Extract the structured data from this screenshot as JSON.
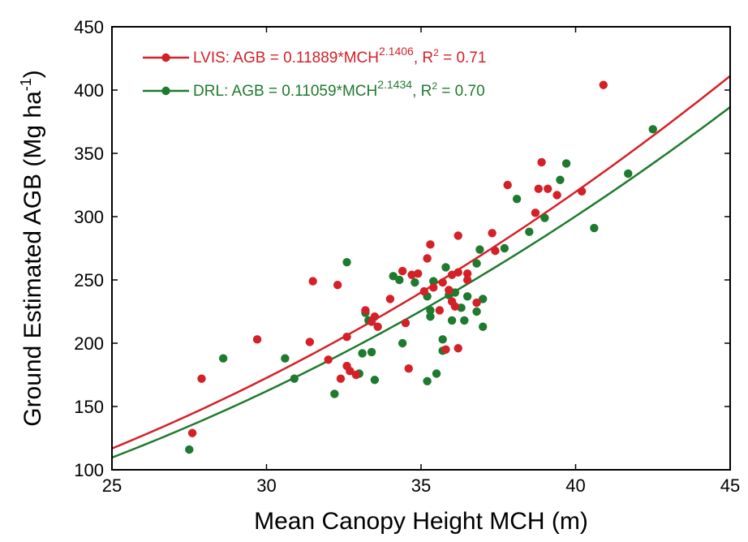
{
  "chart_data": {
    "type": "scatter",
    "title": "",
    "xlabel": "Mean Canopy Height MCH (m)",
    "ylabel_main": "Ground Estimated AGB (Mg ha",
    "ylabel_sup": "-1",
    "ylabel_close": ")",
    "xlim": [
      25,
      45
    ],
    "ylim": [
      100,
      450
    ],
    "xticks": [
      25,
      30,
      35,
      40,
      45
    ],
    "yticks": [
      100,
      150,
      200,
      250,
      300,
      350,
      400,
      450
    ],
    "grid": false,
    "legend_position": "top-left",
    "series": [
      {
        "name": "LVIS",
        "color": "#d42027",
        "legend": {
          "prefix": "LVIS: AGB = 0.11889*MCH",
          "exponent": "2.1406",
          "r2_prefix": ",  R",
          "r2_sup": "2",
          "r2_suffix": " = 0.71"
        },
        "fit": {
          "a": 0.11889,
          "b": 2.1406
        },
        "points": [
          [
            27.6,
            129
          ],
          [
            27.9,
            172
          ],
          [
            29.7,
            203
          ],
          [
            31.4,
            201
          ],
          [
            31.5,
            249
          ],
          [
            32.0,
            187
          ],
          [
            32.3,
            246
          ],
          [
            32.4,
            172
          ],
          [
            32.6,
            205
          ],
          [
            32.6,
            182
          ],
          [
            32.7,
            178
          ],
          [
            32.9,
            175
          ],
          [
            33.2,
            226
          ],
          [
            33.4,
            217
          ],
          [
            33.5,
            221
          ],
          [
            33.6,
            213
          ],
          [
            34.0,
            235
          ],
          [
            34.4,
            257
          ],
          [
            34.5,
            216
          ],
          [
            34.6,
            180
          ],
          [
            34.7,
            254
          ],
          [
            34.9,
            255
          ],
          [
            35.1,
            241
          ],
          [
            35.2,
            267
          ],
          [
            35.3,
            278
          ],
          [
            35.4,
            244
          ],
          [
            35.6,
            226
          ],
          [
            35.7,
            248
          ],
          [
            35.8,
            195
          ],
          [
            35.9,
            242
          ],
          [
            36.0,
            254
          ],
          [
            36.0,
            233
          ],
          [
            36.1,
            229
          ],
          [
            36.2,
            256
          ],
          [
            36.2,
            285
          ],
          [
            36.2,
            196
          ],
          [
            36.5,
            250
          ],
          [
            36.5,
            255
          ],
          [
            36.8,
            232
          ],
          [
            37.3,
            287
          ],
          [
            37.4,
            273
          ],
          [
            37.8,
            325
          ],
          [
            38.7,
            303
          ],
          [
            38.8,
            322
          ],
          [
            38.9,
            343
          ],
          [
            39.1,
            322
          ],
          [
            39.4,
            317
          ],
          [
            40.2,
            320
          ],
          [
            40.9,
            404
          ]
        ]
      },
      {
        "name": "DRL",
        "color": "#1e7a2e",
        "legend": {
          "prefix": "DRL: AGB = 0.11059*MCH",
          "exponent": "2.1434",
          "r2_prefix": ",  R",
          "r2_sup": "2",
          "r2_suffix": " = 0.70"
        },
        "fit": {
          "a": 0.11059,
          "b": 2.1434
        },
        "points": [
          [
            27.5,
            116
          ],
          [
            28.6,
            188
          ],
          [
            30.6,
            188
          ],
          [
            30.9,
            172
          ],
          [
            32.2,
            160
          ],
          [
            32.6,
            264
          ],
          [
            33.0,
            176
          ],
          [
            33.1,
            192
          ],
          [
            33.2,
            224
          ],
          [
            33.3,
            218
          ],
          [
            33.4,
            193
          ],
          [
            33.5,
            171
          ],
          [
            34.1,
            253
          ],
          [
            34.3,
            250
          ],
          [
            34.4,
            200
          ],
          [
            34.8,
            248
          ],
          [
            35.2,
            170
          ],
          [
            35.2,
            237
          ],
          [
            35.3,
            221
          ],
          [
            35.3,
            226
          ],
          [
            35.4,
            249
          ],
          [
            35.5,
            176
          ],
          [
            35.7,
            203
          ],
          [
            35.7,
            194
          ],
          [
            35.8,
            260
          ],
          [
            35.9,
            238
          ],
          [
            36.0,
            218
          ],
          [
            36.1,
            240
          ],
          [
            36.3,
            228
          ],
          [
            36.4,
            218
          ],
          [
            36.5,
            237
          ],
          [
            36.8,
            225
          ],
          [
            36.8,
            263
          ],
          [
            36.9,
            274
          ],
          [
            37.0,
            235
          ],
          [
            37.0,
            213
          ],
          [
            37.7,
            275
          ],
          [
            38.1,
            314
          ],
          [
            38.5,
            288
          ],
          [
            39.0,
            299
          ],
          [
            39.5,
            329
          ],
          [
            39.7,
            342
          ],
          [
            40.6,
            291
          ],
          [
            41.7,
            334
          ],
          [
            42.5,
            369
          ]
        ]
      }
    ]
  }
}
